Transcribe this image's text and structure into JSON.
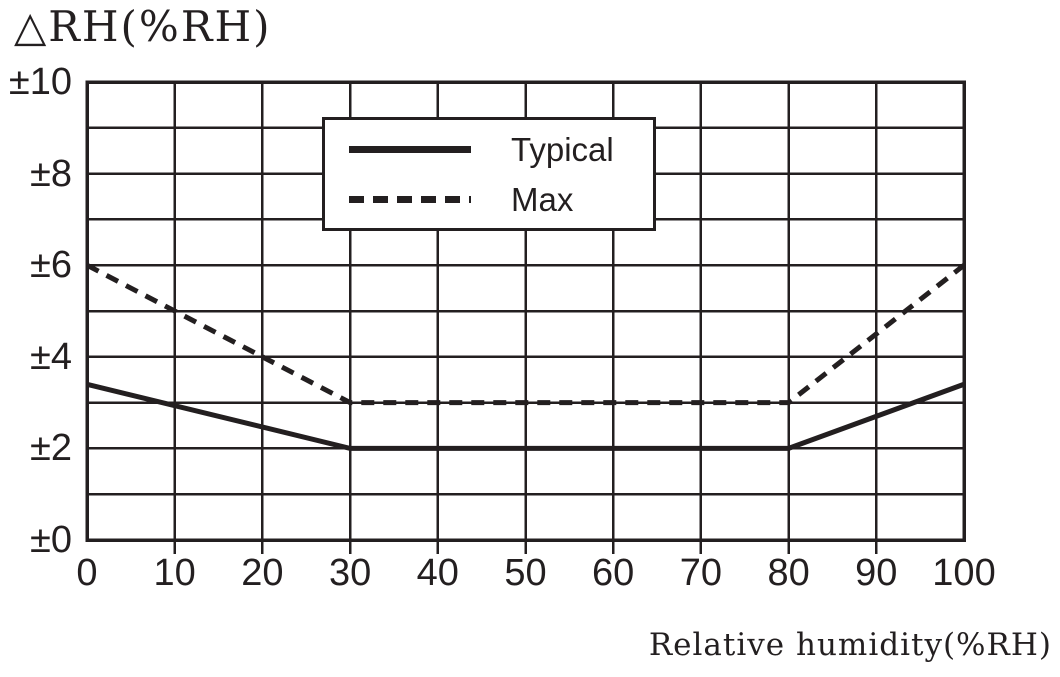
{
  "colors": {
    "ink": "#231f20",
    "background": "#ffffff"
  },
  "chart_data": {
    "type": "line",
    "title": "△RH(%RH)",
    "xlabel": "Relative humidity(%RH)",
    "ylabel": "△RH(%RH)",
    "xlim": [
      0,
      100
    ],
    "ylim": [
      0,
      10
    ],
    "x_ticks": [
      0,
      10,
      20,
      30,
      40,
      50,
      60,
      70,
      80,
      90,
      100
    ],
    "x_tick_labels": [
      "0",
      "10",
      "20",
      "30",
      "40",
      "50",
      "60",
      "70",
      "80",
      "90",
      "100"
    ],
    "y_major_ticks": [
      0,
      2,
      4,
      6,
      8,
      10
    ],
    "y_tick_labels": [
      "±0",
      "±2",
      "±4",
      "±6",
      "±8",
      "±10"
    ],
    "y_minor_step": 1,
    "grid": true,
    "legend_position": "inside-top-center",
    "series": [
      {
        "name": "Typical",
        "line_style": "solid",
        "points": [
          [
            0,
            3.4
          ],
          [
            30,
            2.0
          ],
          [
            80,
            2.0
          ],
          [
            100,
            3.4
          ]
        ]
      },
      {
        "name": "Max",
        "line_style": "dashed",
        "points": [
          [
            0,
            6.0
          ],
          [
            30,
            3.0
          ],
          [
            80,
            3.0
          ],
          [
            100,
            6.0
          ]
        ]
      }
    ]
  }
}
